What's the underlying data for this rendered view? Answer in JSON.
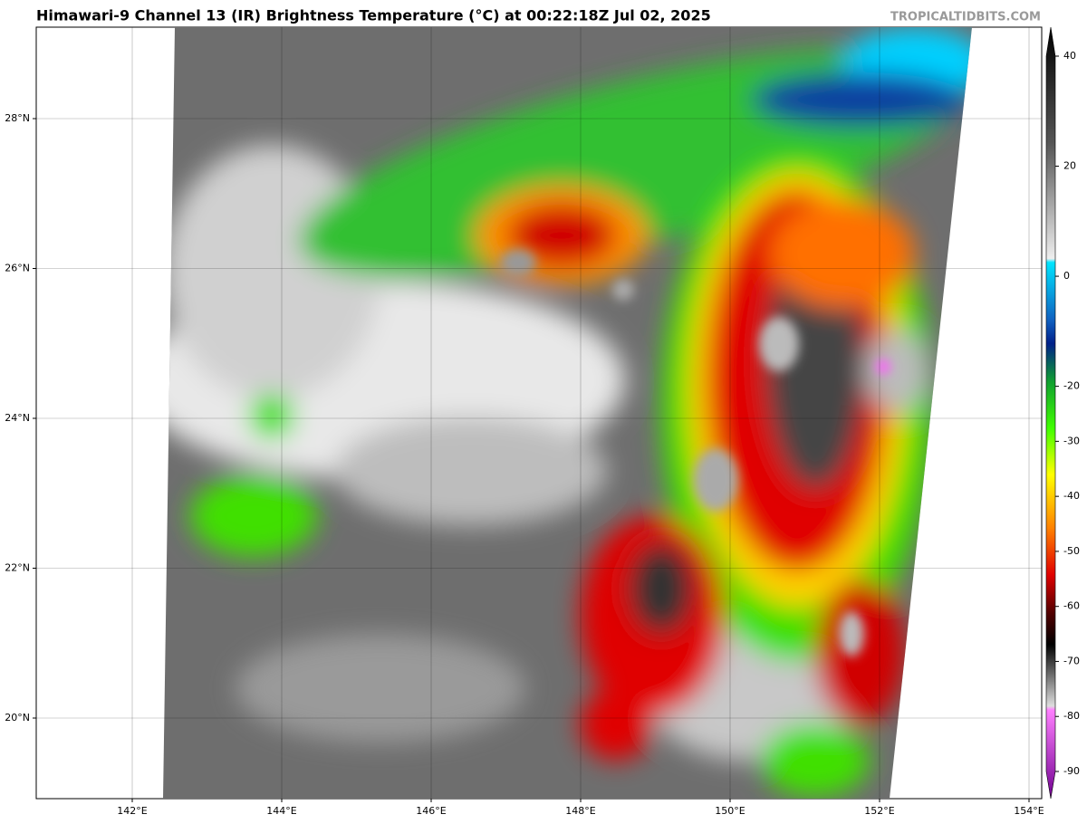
{
  "title": "Himawari-9 Channel 13 (IR) Brightness Temperature (°C) at 00:22:18Z Jul 02, 2025",
  "site": "TROPICALTIDBITS.COM",
  "lat_ticks": [
    {
      "value": 28,
      "label": "28°N"
    },
    {
      "value": 26,
      "label": "26°N"
    },
    {
      "value": 24,
      "label": "24°N"
    },
    {
      "value": 22,
      "label": "22°N"
    },
    {
      "value": 20,
      "label": "20°N"
    }
  ],
  "lon_ticks": [
    {
      "value": 142,
      "label": "142°E"
    },
    {
      "value": 144,
      "label": "144°E"
    },
    {
      "value": 146,
      "label": "146°E"
    },
    {
      "value": 148,
      "label": "148°E"
    },
    {
      "value": 150,
      "label": "150°E"
    },
    {
      "value": 152,
      "label": "152°E"
    },
    {
      "value": 154,
      "label": "154°E"
    }
  ],
  "colorbar_ticks": [
    40,
    20,
    0,
    -20,
    -30,
    -40,
    -50,
    -60,
    -70,
    -80,
    -90
  ]
}
